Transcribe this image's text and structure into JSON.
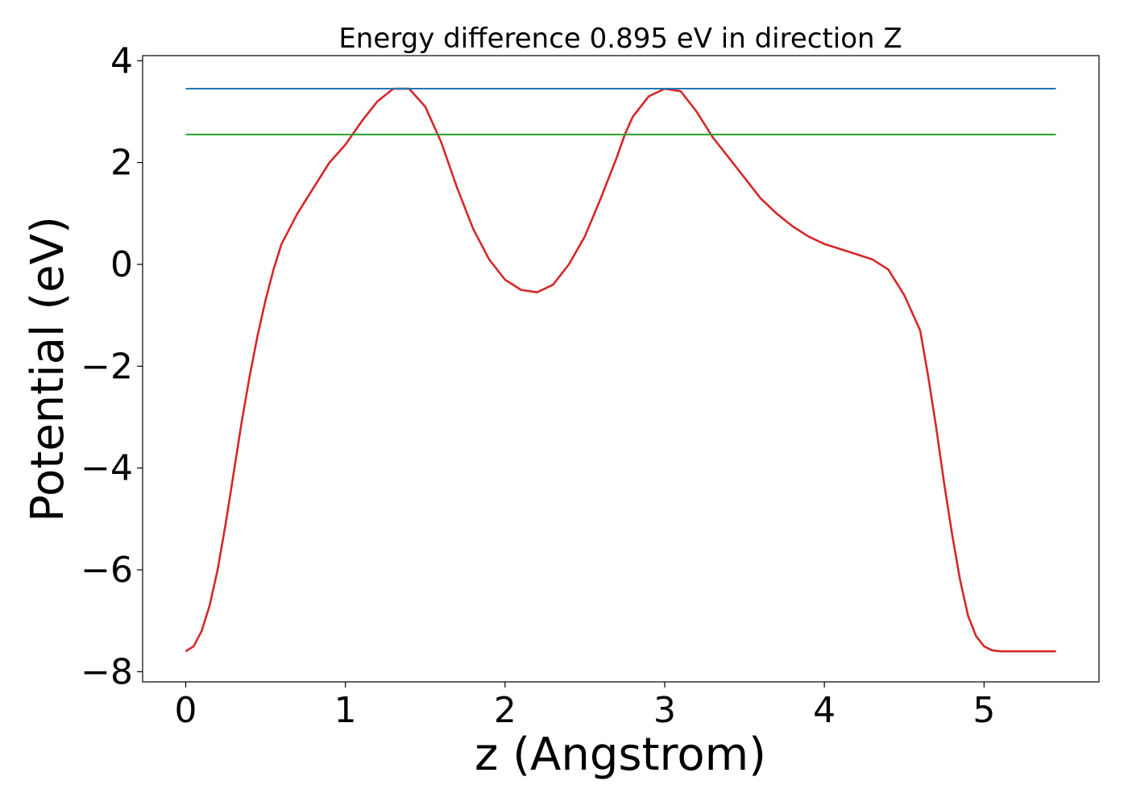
{
  "chart_data": {
    "type": "line",
    "title": "Energy difference 0.895 eV in direction Z",
    "xlabel": "z (Angstrom)",
    "ylabel": "Potential (eV)",
    "xlim": [
      -0.27,
      5.72
    ],
    "ylim": [
      -8.2,
      4.1
    ],
    "xticks": [
      0,
      1,
      2,
      3,
      4,
      5
    ],
    "yticks": [
      -8,
      -6,
      -4,
      -2,
      0,
      2,
      4
    ],
    "xtick_labels": [
      "0",
      "1",
      "2",
      "3",
      "4",
      "5"
    ],
    "ytick_labels": [
      "−8",
      "−6",
      "−4",
      "−2",
      "0",
      "2",
      "4"
    ],
    "grid": false,
    "series": [
      {
        "kind": "line",
        "color": "#d62728",
        "x": [
          0.0,
          0.05,
          0.1,
          0.15,
          0.2,
          0.25,
          0.3,
          0.35,
          0.4,
          0.45,
          0.5,
          0.55,
          0.6,
          0.65,
          0.7,
          0.75,
          0.8,
          0.85,
          0.9,
          1.0,
          1.1,
          1.2,
          1.3,
          1.4,
          1.5,
          1.6,
          1.7,
          1.8,
          1.9,
          2.0,
          2.1,
          2.2,
          2.3,
          2.4,
          2.5,
          2.6,
          2.7,
          2.75,
          2.8,
          2.9,
          3.0,
          3.1,
          3.2,
          3.3,
          3.4,
          3.5,
          3.6,
          3.7,
          3.8,
          3.9,
          4.0,
          4.1,
          4.2,
          4.3,
          4.4,
          4.5,
          4.6,
          4.65,
          4.7,
          4.75,
          4.8,
          4.85,
          4.9,
          4.95,
          5.0,
          5.05,
          5.1,
          5.15,
          5.2,
          5.25,
          5.3,
          5.35,
          5.4,
          5.45
        ],
        "y": [
          -7.6,
          -7.5,
          -7.2,
          -6.7,
          -6.0,
          -5.1,
          -4.1,
          -3.1,
          -2.2,
          -1.4,
          -0.7,
          -0.1,
          0.4,
          0.7,
          1.0,
          1.25,
          1.5,
          1.75,
          2.0,
          2.35,
          2.8,
          3.2,
          3.45,
          3.45,
          3.1,
          2.4,
          1.5,
          0.7,
          0.1,
          -0.3,
          -0.5,
          -0.55,
          -0.4,
          0.0,
          0.55,
          1.3,
          2.1,
          2.55,
          2.9,
          3.3,
          3.45,
          3.4,
          3.0,
          2.5,
          2.1,
          1.7,
          1.3,
          1.0,
          0.75,
          0.55,
          0.4,
          0.3,
          0.2,
          0.1,
          -0.1,
          -0.6,
          -1.3,
          -2.2,
          -3.2,
          -4.3,
          -5.3,
          -6.2,
          -6.9,
          -7.3,
          -7.5,
          -7.58,
          -7.6,
          -7.6,
          -7.6,
          -7.6,
          -7.6,
          -7.6,
          -7.6,
          -7.6
        ]
      },
      {
        "kind": "hline",
        "color": "#1f77b4",
        "y": 3.45,
        "x_range": [
          0.0,
          5.45
        ]
      },
      {
        "kind": "hline",
        "color": "#2ca02c",
        "y": 2.55,
        "x_range": [
          0.0,
          5.45
        ]
      }
    ]
  }
}
